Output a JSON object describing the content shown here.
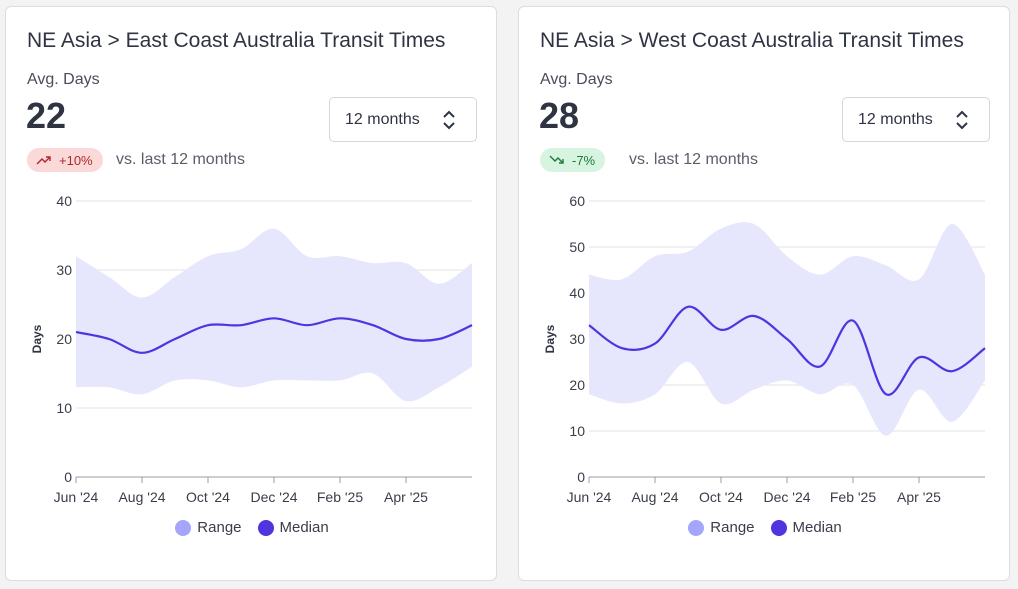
{
  "colors": {
    "range_fill": "#e6e6fd",
    "range_legend": "#a5a5fb",
    "median_line": "#4e35e0",
    "grid": "#e2e3e6",
    "axis": "#9a9ca3"
  },
  "cards": [
    {
      "title": "NE Asia > East Coast Australia Transit Times",
      "avg_label": "Avg. Days",
      "avg_value": "22",
      "change_badge": "+10%",
      "change_direction": "up",
      "change_icon": "trend-up-icon",
      "comparison_text": "vs. last 12 months",
      "period_select": {
        "value": "12 months",
        "icon": "chevron-up-down-icon"
      },
      "legend": {
        "range": "Range",
        "median": "Median"
      },
      "chart_data": {
        "type": "area",
        "ylabel": "Days",
        "ylim": [
          0,
          40
        ],
        "yticks": [
          0,
          10,
          20,
          30,
          40
        ],
        "xticks": [
          "Jun '24",
          "Aug '24",
          "Oct '24",
          "Dec '24",
          "Feb '25",
          "Apr '25"
        ],
        "x": [
          "Jun '24",
          "Jul '24",
          "Aug '24",
          "Sep '24",
          "Oct '24",
          "Nov '24",
          "Dec '24",
          "Jan '25",
          "Feb '25",
          "Mar '25",
          "Apr '25",
          "May '25",
          "Jun '25"
        ],
        "series": [
          {
            "name": "Range",
            "kind": "band",
            "low": [
              13,
              13,
              12,
              14,
              14,
              13,
              14,
              14,
              14,
              15,
              11,
              13,
              16
            ],
            "high": [
              32,
              29,
              26,
              29,
              32,
              33,
              36,
              32,
              32,
              31,
              31,
              28,
              31
            ]
          },
          {
            "name": "Median",
            "kind": "line",
            "values": [
              21,
              20,
              18,
              20,
              22,
              22,
              23,
              22,
              23,
              22,
              20,
              20,
              22
            ]
          }
        ]
      }
    },
    {
      "title": "NE Asia > West Coast Australia Transit Times",
      "avg_label": "Avg. Days",
      "avg_value": "28",
      "change_badge": "-7%",
      "change_direction": "down",
      "change_icon": "trend-down-icon",
      "comparison_text": "vs. last 12 months",
      "period_select": {
        "value": "12 months",
        "icon": "chevron-up-down-icon"
      },
      "legend": {
        "range": "Range",
        "median": "Median"
      },
      "chart_data": {
        "type": "area",
        "ylabel": "Days",
        "ylim": [
          0,
          60
        ],
        "yticks": [
          0,
          10,
          20,
          30,
          40,
          50,
          60
        ],
        "xticks": [
          "Jun '24",
          "Aug '24",
          "Oct '24",
          "Dec '24",
          "Feb '25",
          "Apr '25"
        ],
        "x": [
          "Jun '24",
          "Jul '24",
          "Aug '24",
          "Sep '24",
          "Oct '24",
          "Nov '24",
          "Dec '24",
          "Jan '25",
          "Feb '25",
          "Mar '25",
          "Apr '25",
          "May '25",
          "Jun '25"
        ],
        "series": [
          {
            "name": "Range",
            "kind": "band",
            "low": [
              18,
              16,
              18,
              25,
              16,
              19,
              21,
              18,
              20,
              9,
              19,
              12,
              21
            ],
            "high": [
              44,
              43,
              48,
              49,
              54,
              55,
              48,
              44,
              48,
              46,
              43,
              55,
              44
            ]
          },
          {
            "name": "Median",
            "kind": "line",
            "values": [
              33,
              28,
              29,
              37,
              32,
              35,
              30,
              24,
              34,
              18,
              26,
              23,
              28
            ]
          }
        ]
      }
    }
  ]
}
